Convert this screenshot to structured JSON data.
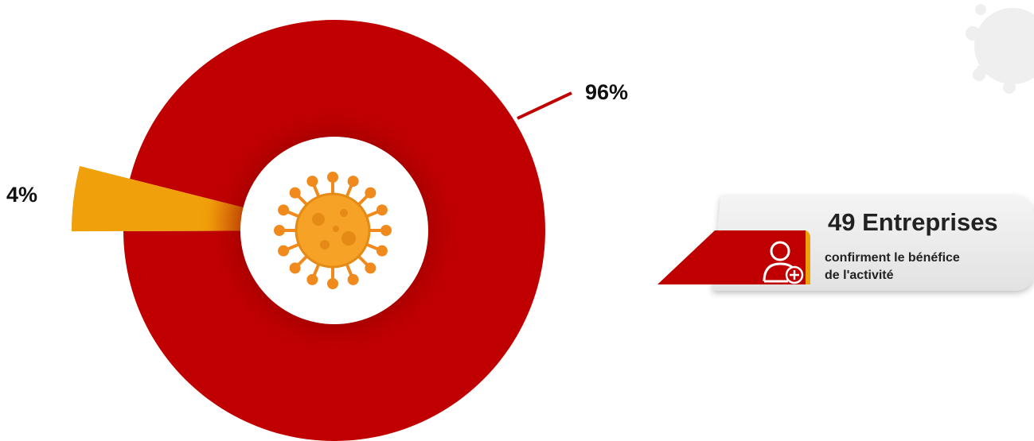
{
  "chart_data": {
    "type": "pie",
    "slices": [
      {
        "label": "96%",
        "value": 96,
        "color": "#c00000"
      },
      {
        "label": "4%",
        "value": 4,
        "color": "#f0a00a"
      }
    ],
    "title": "",
    "legend": "none",
    "center_icon": "virus-icon"
  },
  "stat_card": {
    "title": "49 Entreprises",
    "description_line1": "confirment le bénéfice",
    "description_line2": "de l'activité",
    "icon": "user-plus-icon",
    "accent_color": "#c00000"
  },
  "decor": {
    "icon": "virus-watermark-icon"
  }
}
